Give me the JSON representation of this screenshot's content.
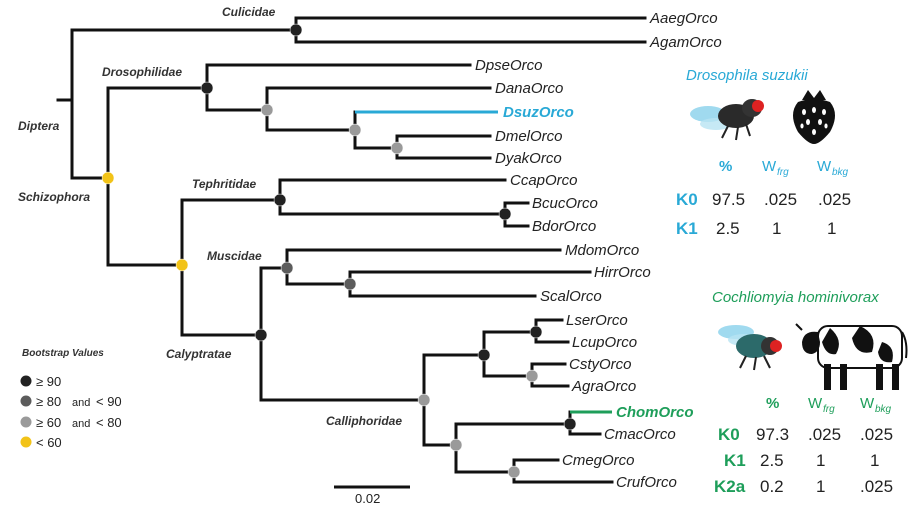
{
  "colors": {
    "branch": "#111111",
    "dsuz": "#29a9d6",
    "chom": "#1e9e5a",
    "node_90": "#222222",
    "node_80": "#5c5c5c",
    "node_60": "#9a9a9a",
    "node_lt60": "#f2c318"
  },
  "tips": {
    "aaeg": "AaegOrco",
    "agam": "AgamOrco",
    "dpse": "DpseOrco",
    "dana": "DanaOrco",
    "dsuz": "DsuzOrco",
    "dmel": "DmelOrco",
    "dyak": "DyakOrco",
    "ccap": "CcapOrco",
    "bcuc": "BcucOrco",
    "bdor": "BdorOrco",
    "mdom": "MdomOrco",
    "hirr": "HirrOrco",
    "scal": "ScalOrco",
    "lser": "LserOrco",
    "lcup": "LcupOrco",
    "csty": "CstyOrco",
    "agra": "AgraOrco",
    "chom": "ChomOrco",
    "cmac": "CmacOrco",
    "cmeg": "CmegOrco",
    "cruf": "CrufOrco"
  },
  "clades": {
    "culicidae": "Culicidae",
    "drosophilidae": "Drosophilidae",
    "diptera": "Diptera",
    "schizophora": "Schizophora",
    "tephritidae": "Tephritidae",
    "muscidae": "Muscidae",
    "calyptratae": "Calyptratae",
    "calliphoridae": "Calliphoridae"
  },
  "legend": {
    "title": "Bootstrap Values",
    "items": [
      {
        "op1": "≥ 90",
        "mid": "",
        "op2": "",
        "color": "#222222"
      },
      {
        "op1": "≥ 80",
        "mid": "and",
        "op2": "< 90",
        "color": "#5c5c5c"
      },
      {
        "op1": "≥ 60",
        "mid": "and",
        "op2": "< 80",
        "color": "#9a9a9a"
      },
      {
        "op1": "< 60",
        "mid": "",
        "op2": "",
        "color": "#f2c318"
      }
    ]
  },
  "scale_bar": {
    "label": "0.02"
  },
  "drosophila_panel": {
    "species": "Drosophila suzukii",
    "header": {
      "pct": "%",
      "wfrg": "W",
      "wfrg_sub": "frg",
      "wbkg": "W",
      "wbkg_sub": "bkg"
    },
    "rows": [
      {
        "label": "K0",
        "pct": "97.5",
        "wfrg": ".025",
        "wbkg": ".025"
      },
      {
        "label": "K1",
        "pct": "2.5",
        "wfrg": "1",
        "wbkg": "1"
      }
    ],
    "icons": [
      "fly-icon",
      "strawberry-icon"
    ]
  },
  "cochliomyia_panel": {
    "species": "Cochliomyia hominivorax",
    "header": {
      "pct": "%",
      "wfrg": "W",
      "wfrg_sub": "frg",
      "wbkg": "W",
      "wbkg_sub": "bkg"
    },
    "rows": [
      {
        "label": "K0",
        "pct": "97.3",
        "wfrg": ".025",
        "wbkg": ".025"
      },
      {
        "label": "K1",
        "pct": "2.5",
        "wfrg": "1",
        "wbkg": "1"
      },
      {
        "label": "K2a",
        "pct": "0.2",
        "wfrg": "1",
        "wbkg": ".025"
      }
    ],
    "icons": [
      "fly-icon",
      "cow-icon"
    ]
  }
}
